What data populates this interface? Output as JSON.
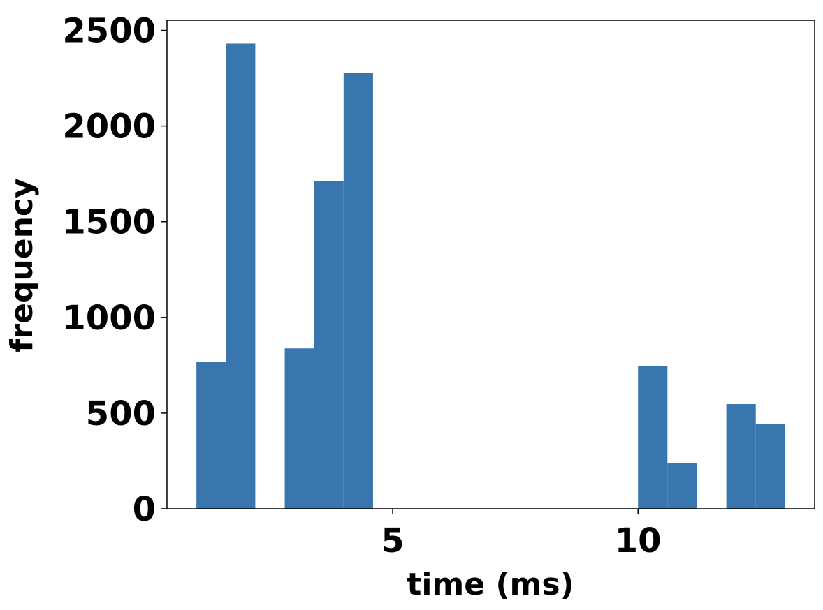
{
  "chart_data": {
    "type": "histogram",
    "xlabel": "time (ms)",
    "ylabel": "frequency",
    "bins": [
      1.0,
      1.6,
      2.2,
      2.8,
      3.4,
      4.0,
      4.6,
      5.2,
      5.8,
      6.4,
      7.0,
      7.6,
      8.2,
      8.8,
      9.4,
      10.0,
      10.6,
      11.2,
      11.8,
      12.4,
      13.0
    ],
    "values": [
      769,
      2431,
      0,
      838,
      1713,
      2278,
      0,
      0,
      0,
      0,
      0,
      0,
      0,
      0,
      0,
      747,
      237,
      0,
      547,
      445
    ],
    "color": "#3a76ae",
    "xlim": [
      0.4,
      13.6
    ],
    "xticks": [
      5,
      10
    ],
    "ylim": [
      0,
      2553
    ],
    "yticks": [
      0,
      500,
      1000,
      1500,
      2000,
      2500
    ],
    "grid": false
  }
}
